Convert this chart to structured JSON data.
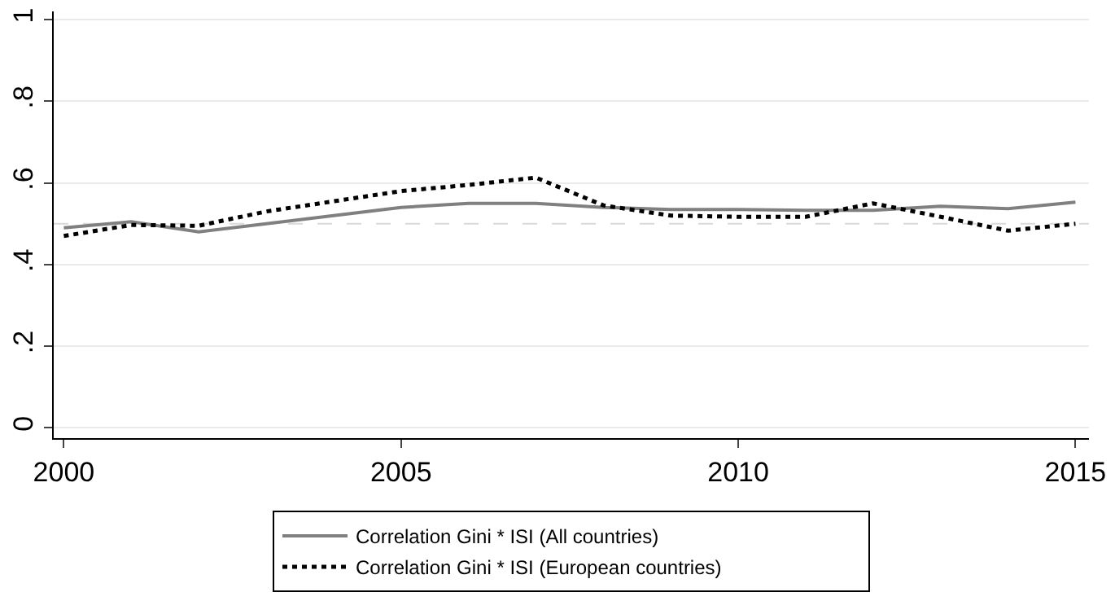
{
  "chart_data": {
    "type": "line",
    "x": [
      2000,
      2001,
      2002,
      2003,
      2004,
      2005,
      2006,
      2007,
      2008,
      2009,
      2010,
      2011,
      2012,
      2013,
      2014,
      2015
    ],
    "series": [
      {
        "name": "Correlation Gini * ISI (All countries)",
        "color": "#808080",
        "line_style": "solid",
        "values": [
          0.49,
          0.505,
          0.48,
          0.5,
          0.52,
          0.54,
          0.55,
          0.55,
          0.54,
          0.535,
          0.535,
          0.533,
          0.533,
          0.543,
          0.537,
          0.553
        ]
      },
      {
        "name": "Correlation Gini * ISI (European countries)",
        "color": "#000000",
        "line_style": "dotted",
        "values": [
          0.47,
          0.497,
          0.495,
          0.53,
          0.555,
          0.58,
          0.595,
          0.613,
          0.545,
          0.52,
          0.517,
          0.517,
          0.55,
          0.517,
          0.483,
          0.5
        ]
      }
    ],
    "xlim": [
      1999.85,
      2015.2
    ],
    "xticks": [
      2000,
      2005,
      2010,
      2015
    ],
    "ylim": [
      -0.025,
      1.02
    ],
    "yticks": [
      {
        "value": 0,
        "label": "0"
      },
      {
        "value": 0.2,
        "label": ".2"
      },
      {
        "value": 0.4,
        "label": ".4"
      },
      {
        "value": 0.6,
        "label": ".6"
      },
      {
        "value": 0.8,
        "label": ".8"
      },
      {
        "value": 1,
        "label": "1"
      }
    ],
    "ref_lines": [
      {
        "axis": "y",
        "value": 0.5,
        "label": null,
        "color": "#d9d9d9",
        "line_style": "dashed"
      }
    ],
    "grid": "y",
    "legend": "bottom",
    "marker": "none"
  }
}
